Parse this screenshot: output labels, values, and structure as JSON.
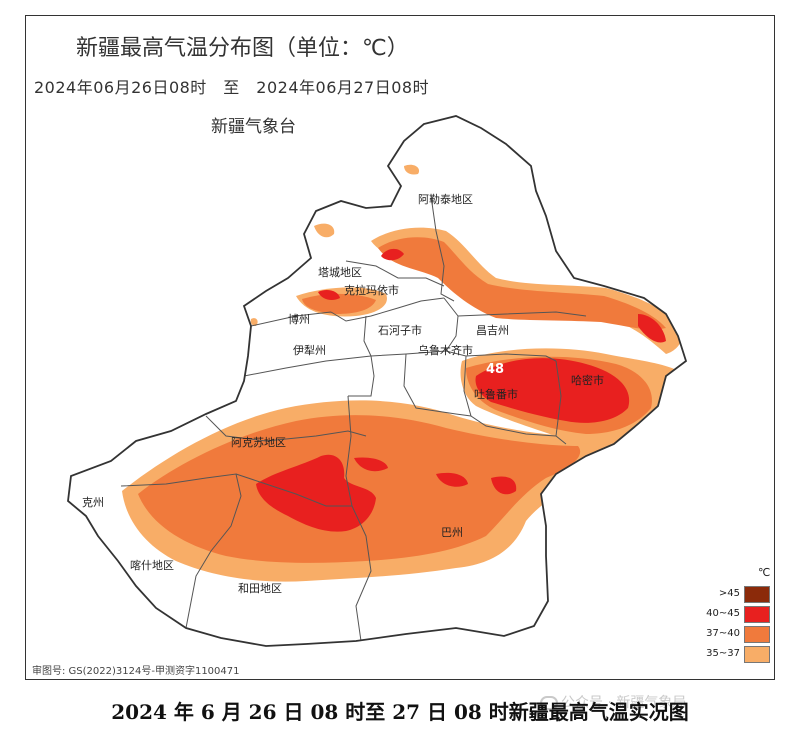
{
  "map": {
    "title": "新疆最高气温分布图（单位：℃）",
    "period": "2024年06月26日08时　至　2024年06月27日08时",
    "agency": "新疆气象台",
    "approval": "审图号: GS(2022)3124号-甲测资字1100471",
    "max_value": "48",
    "colors": {
      "t45_plus": "#8b2a0a",
      "t40_45": "#e8201f",
      "t37_40": "#f07a3c",
      "t35_37": "#f8ad67",
      "border": "#555555",
      "outline": "#333333"
    },
    "places": {
      "aletai": "阿勒泰地区",
      "tacheng": "塔城地区",
      "kelamayi": "克拉玛依市",
      "bozhou": "博州",
      "shihezi": "石河子市",
      "changji": "昌吉州",
      "wulumuqi": "乌鲁木齐市",
      "yili": "伊犁州",
      "tulufan": "吐鲁番市",
      "hami": "哈密市",
      "akesu": "阿克苏地区",
      "kezhou": "克州",
      "kashi": "喀什地区",
      "hetian": "和田地区",
      "bazhou": "巴州"
    },
    "legend": {
      "unit": "℃",
      "items": [
        {
          "label": ">45",
          "color": "#8b2a0a"
        },
        {
          "label": "40~45",
          "color": "#e8201f"
        },
        {
          "label": "37~40",
          "color": "#f07a3c"
        },
        {
          "label": "35~37",
          "color": "#f8ad67"
        }
      ]
    }
  },
  "caption": "2024 年 6 月 26 日 08 时至 27 日 08 时新疆最高气温实况图",
  "watermark": "公众号 · 新疆气象局"
}
